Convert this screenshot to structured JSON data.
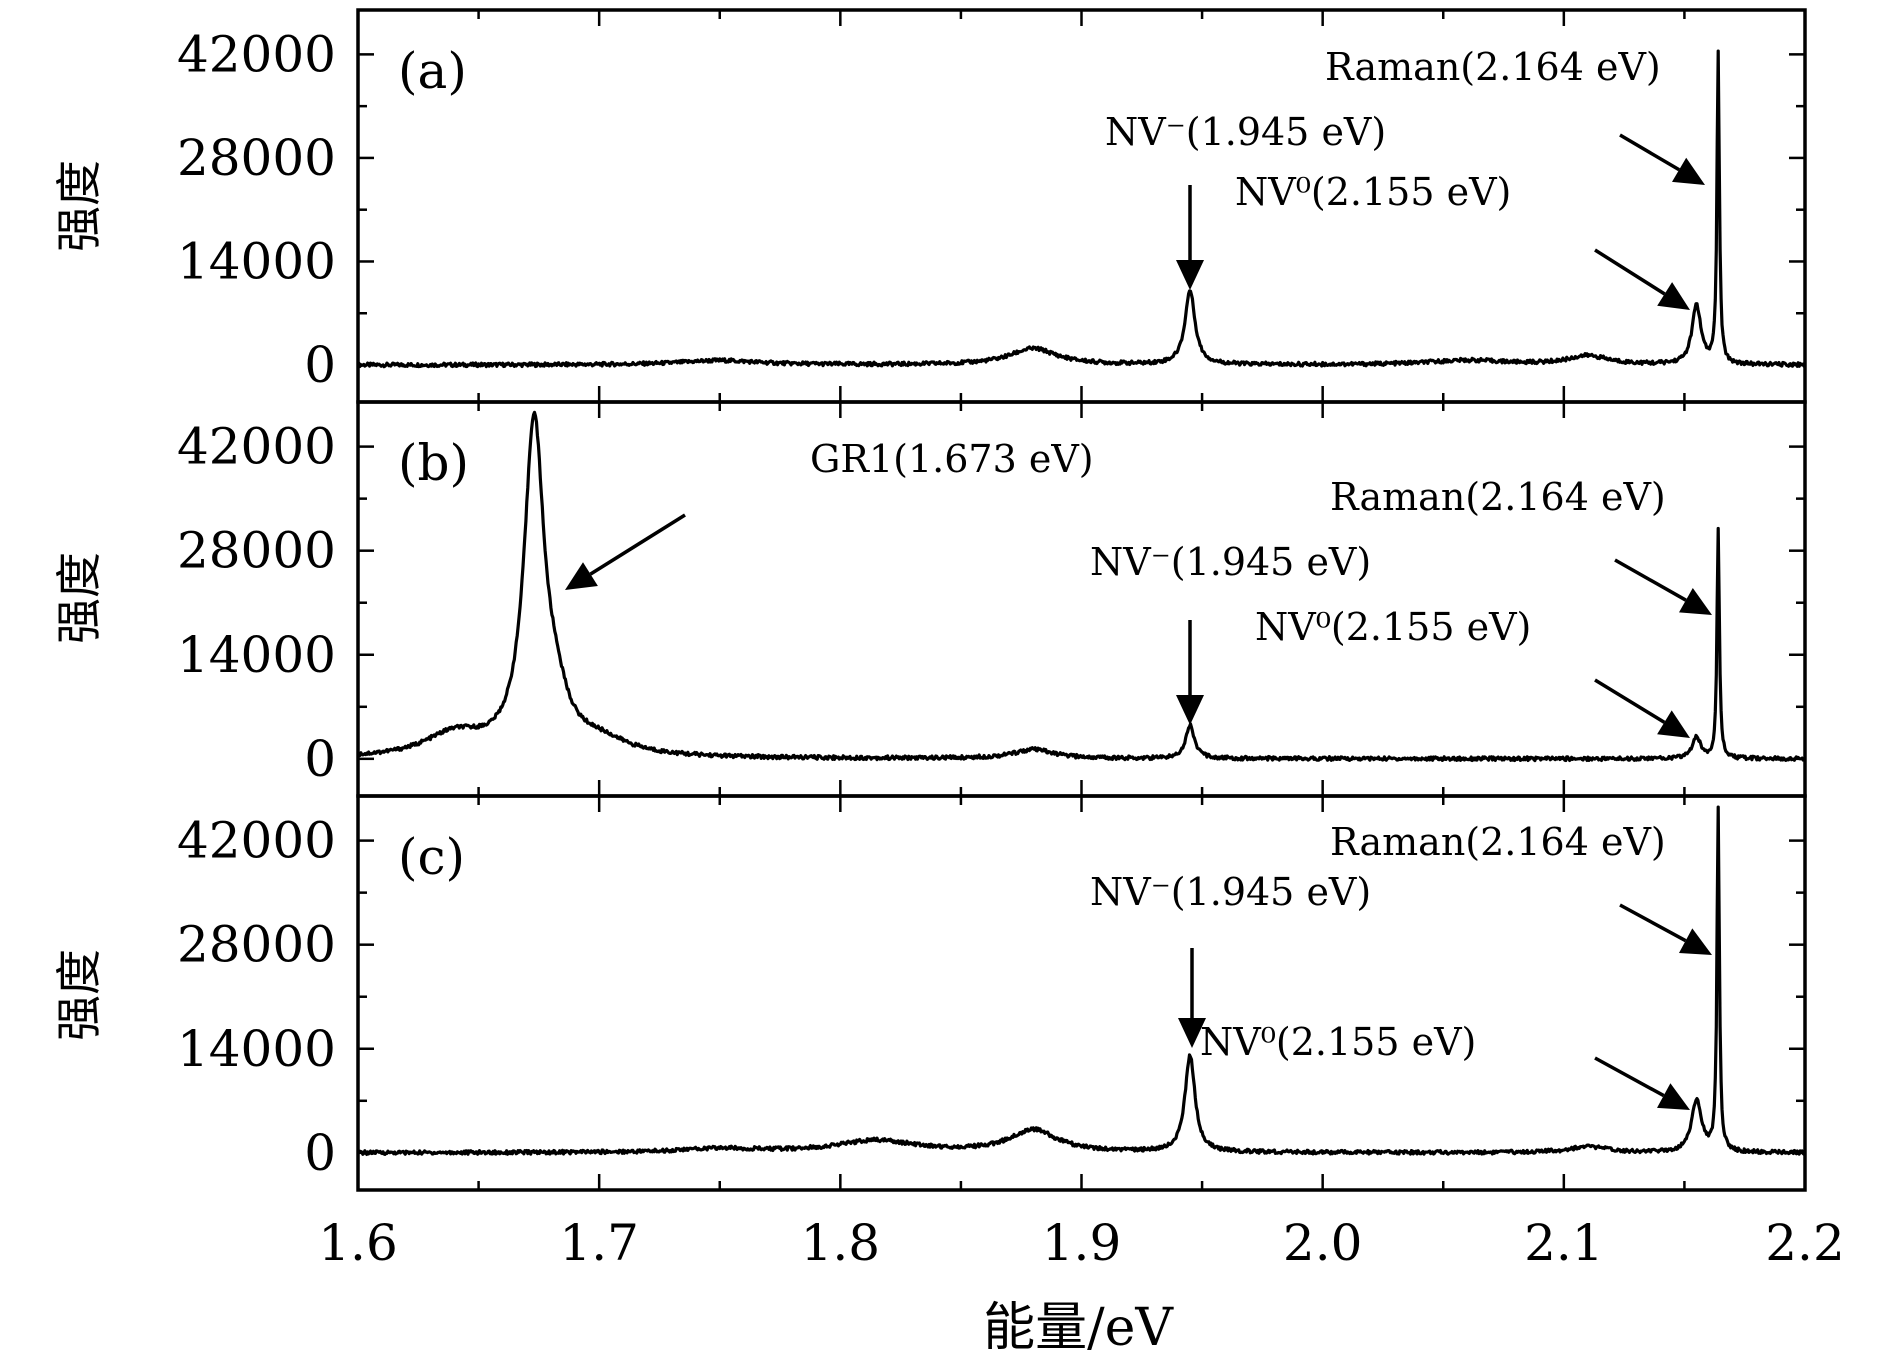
{
  "chart_data": [
    {
      "panel": "(a)",
      "type": "line",
      "xlim": [
        1.6,
        2.2
      ],
      "ylim": [
        -5000,
        48000
      ],
      "yticks": [
        "0",
        "14000",
        "28000",
        "42000"
      ],
      "ylabel": "强度",
      "grid": false,
      "peaks": [
        {
          "x": 1.945,
          "y": 10000,
          "width": 0.0025
        },
        {
          "x": 2.155,
          "y": 8000,
          "width": 0.0022
        },
        {
          "x": 2.164,
          "y": 42000,
          "width": 0.0006
        },
        {
          "x": 1.88,
          "y": 2200,
          "width": 0.012
        },
        {
          "x": 2.11,
          "y": 1200,
          "width": 0.01
        },
        {
          "x": 1.75,
          "y": 600,
          "width": 0.02
        },
        {
          "x": 2.06,
          "y": 600,
          "width": 0.02
        }
      ],
      "annotations": [
        {
          "id": "nvm",
          "text": "NV⁻(1.945 eV)",
          "x": 1.945
        },
        {
          "id": "nv0",
          "text": "NV⁰(2.155 eV)",
          "x": 2.155
        },
        {
          "id": "raman",
          "text": "Raman(2.164 eV)",
          "x": 2.164
        }
      ]
    },
    {
      "panel": "(b)",
      "type": "line",
      "xlim": [
        1.6,
        2.2
      ],
      "ylim": [
        -5000,
        48000
      ],
      "yticks": [
        "0",
        "14000",
        "28000",
        "42000"
      ],
      "ylabel": "强度",
      "grid": false,
      "peaks": [
        {
          "x": 1.673,
          "y": 44000,
          "width": 0.005
        },
        {
          "x": 1.682,
          "y": 5000,
          "width": 0.006
        },
        {
          "x": 1.64,
          "y": 3000,
          "width": 0.015
        },
        {
          "x": 1.7,
          "y": 2000,
          "width": 0.015
        },
        {
          "x": 1.945,
          "y": 4500,
          "width": 0.0022
        },
        {
          "x": 2.155,
          "y": 2800,
          "width": 0.0022
        },
        {
          "x": 2.164,
          "y": 31000,
          "width": 0.0006
        },
        {
          "x": 1.88,
          "y": 1200,
          "width": 0.01
        }
      ],
      "annotations": [
        {
          "id": "gr1",
          "text": "GR1(1.673 eV)",
          "x": 1.673
        },
        {
          "id": "nvm",
          "text": "NV⁻(1.945 eV)",
          "x": 1.945
        },
        {
          "id": "nv0",
          "text": "NV⁰(2.155 eV)",
          "x": 2.155
        },
        {
          "id": "raman",
          "text": "Raman(2.164 eV)",
          "x": 2.164
        }
      ]
    },
    {
      "panel": "(c)",
      "type": "line",
      "xlim": [
        1.6,
        2.2
      ],
      "ylim": [
        -5000,
        48000
      ],
      "yticks": [
        "0",
        "14000",
        "28000",
        "42000"
      ],
      "ylabel": "强度",
      "xlabel": "能量/eV",
      "xticks": [
        "1.6",
        "1.7",
        "1.8",
        "1.9",
        "2.0",
        "2.1",
        "2.2"
      ],
      "grid": false,
      "peaks": [
        {
          "x": 1.945,
          "y": 13000,
          "width": 0.0025
        },
        {
          "x": 2.155,
          "y": 7000,
          "width": 0.0025
        },
        {
          "x": 2.164,
          "y": 46000,
          "width": 0.0006
        },
        {
          "x": 1.88,
          "y": 3000,
          "width": 0.012
        },
        {
          "x": 1.815,
          "y": 1600,
          "width": 0.02
        },
        {
          "x": 2.11,
          "y": 800,
          "width": 0.01
        },
        {
          "x": 1.75,
          "y": 500,
          "width": 0.02
        }
      ],
      "annotations": [
        {
          "id": "nvm",
          "text": "NV⁻(1.945 eV)",
          "x": 1.945
        },
        {
          "id": "nv0",
          "text": "NV⁰(2.155 eV)",
          "x": 2.155
        },
        {
          "id": "raman",
          "text": "Raman(2.164 eV)",
          "x": 2.164
        }
      ]
    }
  ]
}
